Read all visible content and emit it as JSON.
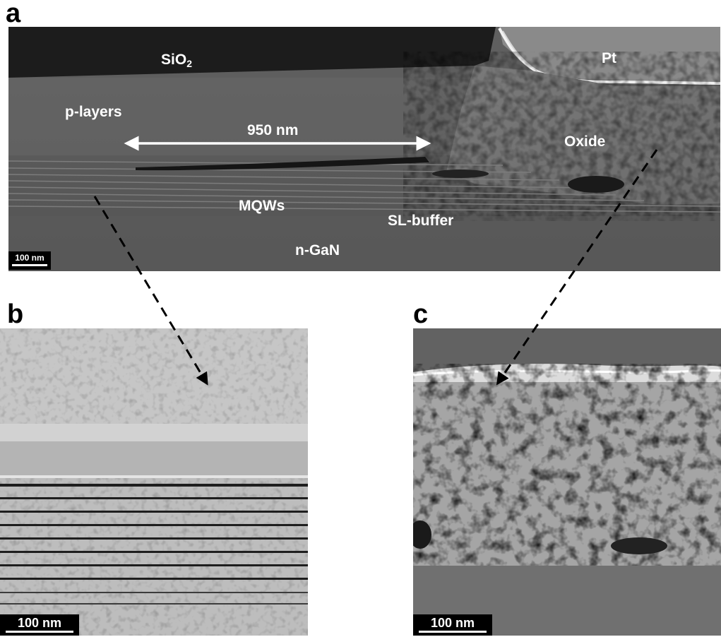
{
  "panels": {
    "a": {
      "letter": "a",
      "labels": {
        "sio2": "SiO",
        "sio2_sub": "2",
        "pt": "Pt",
        "p_layers": "p-layers",
        "width": "950 nm",
        "oxide": "Oxide",
        "mqws": "MQWs",
        "sl_buffer": "SL-buffer",
        "n_gan": "n-GaN"
      },
      "scalebar": "100 nm"
    },
    "b": {
      "letter": "b",
      "scalebar": "100 nm"
    },
    "c": {
      "letter": "c",
      "scalebar": "100 nm"
    }
  }
}
